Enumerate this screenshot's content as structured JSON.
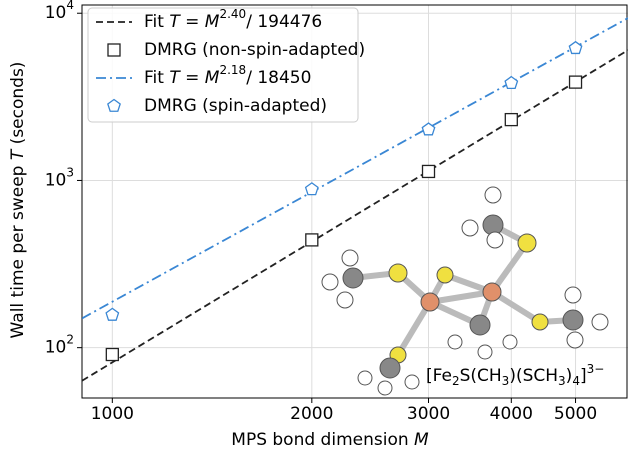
{
  "chart_data": {
    "type": "scatter",
    "log_x": true,
    "log_y": true,
    "grid": true,
    "legend": "upper left",
    "x_label": [
      "MPS bond dimension ",
      "M"
    ],
    "y_label": [
      "Wall time per sweep ",
      "T",
      " (seconds)"
    ],
    "annotation": [
      "[Fe",
      "2",
      "S(CH",
      "3",
      ")(SCH",
      "3",
      ")",
      "4",
      "]",
      "3−"
    ],
    "xlim": [
      900,
      6000
    ],
    "ylim": [
      50,
      11200
    ],
    "xticks": [
      1000,
      2000,
      3000,
      4000,
      5000
    ],
    "yticks": [
      {
        "value": 100,
        "label": "10",
        "exponent": "2"
      },
      {
        "value": 1000,
        "label": "10",
        "exponent": "3"
      },
      {
        "value": 10000,
        "label": "10",
        "exponent": "4"
      }
    ],
    "series": [
      {
        "name": [
          "Fit ",
          "T",
          " = ",
          "M",
          "2.40",
          "/ 194476"
        ],
        "kind": "line",
        "dash": "dashed",
        "color": "#222222",
        "x": [
          900,
          6000
        ],
        "values": [
          63.4,
          6016
        ]
      },
      {
        "name": [
          "DMRG (non-spin-adapted)"
        ],
        "kind": "marker",
        "marker": "square",
        "color": "#222222",
        "x": [
          1000,
          2000,
          3000,
          4000,
          5000
        ],
        "values": [
          91,
          441,
          1132,
          2311,
          3873
        ]
      },
      {
        "name": [
          "Fit ",
          "T",
          " = ",
          "M",
          "2.18",
          "/ 18450"
        ],
        "kind": "line",
        "dash": "dashdot",
        "color": "#3a87d4",
        "x": [
          900,
          6000
        ],
        "values": [
          149.6,
          9355
        ]
      },
      {
        "name": [
          "DMRG (spin-adapted)"
        ],
        "kind": "marker",
        "marker": "pentagon",
        "color": "#3a87d4",
        "x": [
          1000,
          2000,
          3000,
          4000,
          5000
        ],
        "values": [
          157,
          884,
          2015,
          3820,
          6180
        ]
      }
    ]
  }
}
